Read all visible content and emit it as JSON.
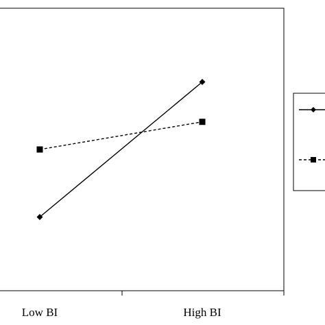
{
  "chart_data": {
    "type": "line",
    "categories": [
      "Low BI",
      "High BI"
    ],
    "series": [
      {
        "values": [
          1.2,
          3.4
        ],
        "marker": "diamond",
        "line_style": "solid",
        "color": "#000000"
      },
      {
        "values": [
          2.3,
          2.75
        ],
        "marker": "square",
        "line_style": "dashed",
        "color": "#000000"
      }
    ],
    "title": "",
    "xlabel": "",
    "ylabel": "",
    "ylim": [
      0,
      4.6
    ],
    "grid": false,
    "legend_position": "right"
  }
}
